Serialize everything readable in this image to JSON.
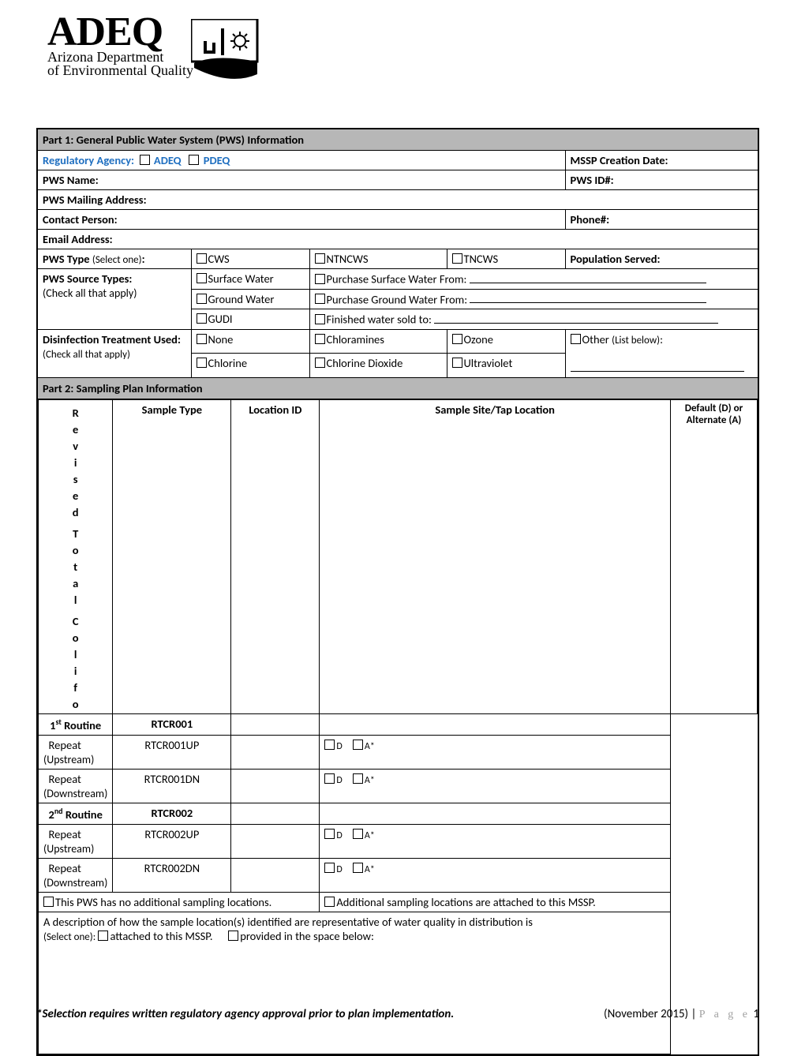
{
  "logo": {
    "main": "ADEQ",
    "sub1": "Arizona Department",
    "sub2": "of Environmental Quality"
  },
  "part1": {
    "header": "Part 1: General Public Water System (PWS) Information",
    "reg": {
      "label": "Regulatory Agency:",
      "adeq": "ADEQ",
      "pdeq": "PDEQ"
    },
    "mssp": {
      "label": "MSSP Creation Date:"
    },
    "pwsname": {
      "label": "PWS Name:"
    },
    "pwsid": {
      "label": "PWS ID#:"
    },
    "addr": {
      "label": "PWS Mailing Address:"
    },
    "contact": {
      "label": "Contact Person:"
    },
    "phone": {
      "label": "Phone#:"
    },
    "email": {
      "label": "Email Address:"
    },
    "type": {
      "label": "PWS Type",
      "hint": "(Select one)",
      "colon": ":",
      "cws": "CWS",
      "ntncws": "NTNCWS",
      "tncws": "TNCWS",
      "popserved": "Population Served:"
    },
    "source": {
      "label": "PWS Source Types:",
      "hint": "(Check all that apply)",
      "surface": "Surface Water",
      "ground": "Ground Water",
      "gudi": "GUDI",
      "psurface": "Purchase Surface Water From:",
      "pground": "Purchase Ground Water From:",
      "sold": "Finished water sold to:"
    },
    "disinf": {
      "label": "Disinfection Treatment Used:",
      "hint": "(Check all that apply)",
      "none": "None",
      "chloramines": "Chloramines",
      "ozone": "Ozone",
      "other": "Other",
      "otherhint": "(List below)",
      "colon": ":",
      "chlorine": "Chlorine",
      "cdioxide": "Chlorine Dioxide",
      "uv": "Ultraviolet"
    }
  },
  "part2": {
    "header": "Part 2: Sampling Plan Information",
    "vtext": "Revised Total Colifo",
    "cols": {
      "sample": "Sample Type",
      "loc": "Location ID",
      "site": "Sample Site/Tap Location",
      "da": "Default (D) or Alternate (A)"
    },
    "rows": [
      {
        "type": "1",
        "sup": "st",
        "plain": " Routine",
        "loc": "RTCR001",
        "da": false
      },
      {
        "plain": "Repeat",
        "hint": "(Upstream)",
        "loc": "RTCR001UP",
        "da": true,
        "d": "D",
        "a": "A*"
      },
      {
        "plain": "Repeat",
        "hint": "(Downstream)",
        "loc": "RTCR001DN",
        "da": true,
        "d": "D",
        "a": "A*"
      },
      {
        "type": "2",
        "sup": "nd",
        "plain": " Routine",
        "loc": "RTCR002",
        "da": false
      },
      {
        "plain": "Repeat",
        "hint": "(Upstream)",
        "loc": "RTCR002UP",
        "da": true,
        "d": "D",
        "a": "A*"
      },
      {
        "plain": "Repeat",
        "hint": "(Downstream)",
        "loc": "RTCR002DN",
        "da": true,
        "d": "D",
        "a": "A*"
      }
    ],
    "noadd": "This PWS has no additional sampling locations.",
    "add": "Additional sampling locations are attached to this MSSP.",
    "desc1": "A description of how the sample location(s) identified are representative of water quality in distribution is",
    "desc2": "(Select one):",
    "opt1": "attached to this MSSP.",
    "opt2": "provided in the space below:"
  },
  "footer": {
    "note": "*Selection requires written regulatory agency approval prior to plan implementation.",
    "date": "(November 2015) | ",
    "page": "P a g e",
    "num": "  1"
  }
}
